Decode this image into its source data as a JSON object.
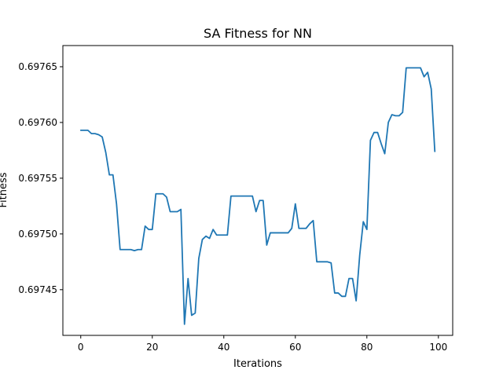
{
  "chart_data": {
    "type": "line",
    "title": "SA Fitness for NN",
    "xlabel": "Iterations",
    "ylabel": "Fitness",
    "xlim": [
      -5,
      104
    ],
    "ylim": [
      0.697409,
      0.697669
    ],
    "grid": false,
    "x_ticks": [
      0,
      20,
      40,
      60,
      80,
      100
    ],
    "x_tick_labels": [
      "0",
      "20",
      "40",
      "60",
      "80",
      "100"
    ],
    "y_ticks": [
      0.69745,
      0.6975,
      0.69755,
      0.6976,
      0.69765
    ],
    "y_tick_labels": [
      "0.69745",
      "0.69750",
      "0.69755",
      "0.69760",
      "0.69765"
    ],
    "line_color": "#1f77b4",
    "series": [
      {
        "x": [
          0,
          1,
          2,
          3,
          4,
          5,
          6,
          7,
          8,
          9,
          10,
          11,
          12,
          13,
          14,
          15,
          16,
          17,
          18,
          19,
          20,
          21,
          22,
          23,
          24,
          25,
          26,
          27,
          28,
          29,
          30,
          31,
          32,
          33,
          34,
          35,
          36,
          37,
          38,
          39,
          40,
          41,
          42,
          43,
          44,
          45,
          46,
          47,
          48,
          49,
          50,
          51,
          52,
          53,
          54,
          55,
          56,
          57,
          58,
          59,
          60,
          61,
          62,
          63,
          64,
          65,
          66,
          67,
          68,
          69,
          70,
          71,
          72,
          73,
          74,
          75,
          76,
          77,
          78,
          79,
          80,
          81,
          82,
          83,
          84,
          85,
          86,
          87,
          88,
          89,
          90,
          91,
          92,
          93,
          94,
          95,
          96,
          97,
          98,
          99
        ],
        "values": [
          0.697593,
          0.697593,
          0.697593,
          0.69759,
          0.69759,
          0.697589,
          0.697587,
          0.697573,
          0.697553,
          0.697553,
          0.697527,
          0.697486,
          0.697486,
          0.697486,
          0.697486,
          0.697485,
          0.697486,
          0.697486,
          0.697507,
          0.697504,
          0.697504,
          0.697536,
          0.697536,
          0.697536,
          0.697533,
          0.69752,
          0.69752,
          0.69752,
          0.697522,
          0.697419,
          0.69746,
          0.697427,
          0.697429,
          0.697478,
          0.697495,
          0.697498,
          0.697496,
          0.697504,
          0.697499,
          0.697499,
          0.697499,
          0.697499,
          0.697534,
          0.697534,
          0.697534,
          0.697534,
          0.697534,
          0.697534,
          0.697534,
          0.69752,
          0.69753,
          0.69753,
          0.69749,
          0.697501,
          0.697501,
          0.697501,
          0.697501,
          0.697501,
          0.697501,
          0.697505,
          0.697527,
          0.697505,
          0.697505,
          0.697505,
          0.697509,
          0.697512,
          0.697475,
          0.697475,
          0.697475,
          0.697475,
          0.697474,
          0.697447,
          0.697447,
          0.697444,
          0.697444,
          0.69746,
          0.69746,
          0.69744,
          0.697481,
          0.697511,
          0.697504,
          0.697584,
          0.697591,
          0.697591,
          0.697581,
          0.697572,
          0.6976,
          0.697607,
          0.697606,
          0.697606,
          0.697609,
          0.697649,
          0.697649,
          0.697649,
          0.697649,
          0.697649,
          0.697641,
          0.697645,
          0.69763,
          0.697574
        ]
      }
    ]
  }
}
